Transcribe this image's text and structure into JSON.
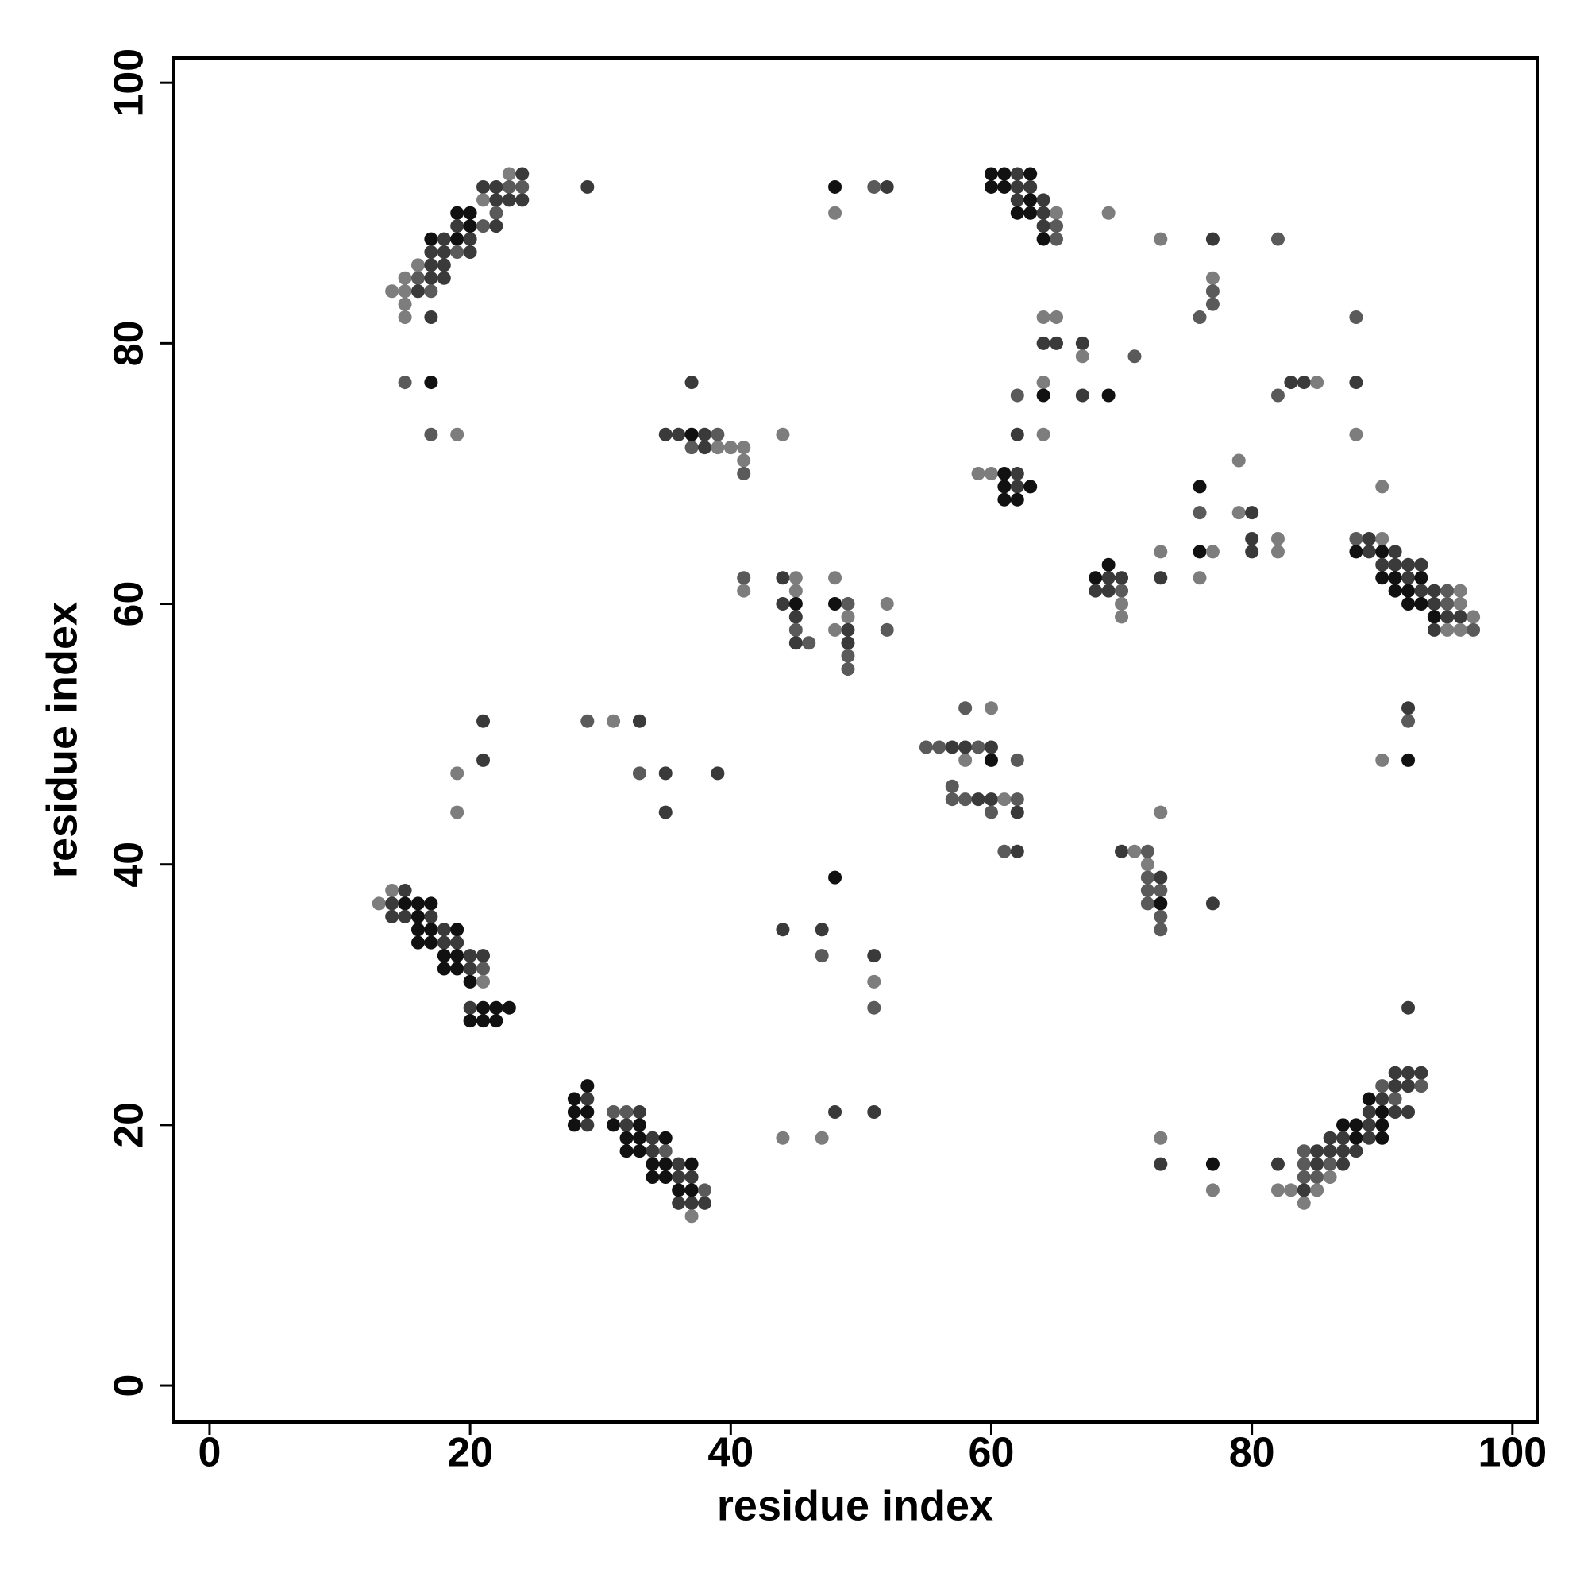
{
  "chart_data": {
    "type": "scatter",
    "xlabel": "residue index",
    "ylabel": "residue index",
    "xlim": [
      -2.8,
      101.9
    ],
    "ylim": [
      -2.8,
      101.9
    ],
    "xticks": [
      0,
      20,
      40,
      60,
      80,
      100
    ],
    "yticks": [
      0,
      20,
      40,
      60,
      80,
      100
    ],
    "grid": false,
    "x": [
      23,
      24,
      60,
      61,
      62,
      63,
      21,
      22,
      23,
      24,
      29,
      48,
      51,
      52,
      60,
      61,
      62,
      63,
      21,
      22,
      23,
      24,
      62,
      63,
      64,
      19,
      20,
      22,
      48,
      62,
      63,
      64,
      65,
      69,
      19,
      20,
      21,
      22,
      64,
      65,
      17,
      18,
      19,
      20,
      64,
      65,
      73,
      77,
      82,
      17,
      18,
      19,
      20,
      16,
      17,
      18,
      15,
      16,
      17,
      18,
      77,
      14,
      15,
      16,
      17,
      77,
      15,
      77,
      15,
      17,
      64,
      65,
      76,
      88,
      64,
      65,
      67,
      67,
      71,
      15,
      17,
      37,
      64,
      83,
      84,
      85,
      88,
      62,
      64,
      67,
      69,
      82,
      17,
      19,
      35,
      36,
      37,
      38,
      39,
      44,
      62,
      64,
      88,
      37,
      38,
      39,
      40,
      41,
      41,
      79,
      41,
      59,
      60,
      61,
      62,
      61,
      62,
      63,
      76,
      90,
      61,
      62,
      76,
      79,
      80,
      80,
      82,
      88,
      89,
      90,
      73,
      76,
      77,
      80,
      82,
      88,
      89,
      90,
      91,
      69,
      90,
      91,
      92,
      93,
      41,
      44,
      45,
      48,
      68,
      69,
      70,
      73,
      76,
      90,
      91,
      92,
      93,
      41,
      45,
      68,
      69,
      70,
      91,
      92,
      93,
      94,
      95,
      96,
      44,
      45,
      48,
      49,
      52,
      70,
      92,
      93,
      94,
      95,
      96,
      45,
      49,
      70,
      94,
      95,
      96,
      97,
      45,
      48,
      49,
      52,
      94,
      95,
      96,
      97,
      45,
      46,
      49,
      49,
      49,
      58,
      60,
      92,
      21,
      29,
      31,
      33,
      92,
      55,
      56,
      57,
      58,
      59,
      60,
      21,
      58,
      60,
      62,
      90,
      92,
      19,
      33,
      35,
      39,
      57,
      57,
      58,
      59,
      60,
      61,
      62,
      19,
      35,
      60,
      62,
      73,
      61,
      62,
      70,
      71,
      72,
      72,
      48,
      72,
      73,
      14,
      15,
      72,
      73,
      13,
      14,
      15,
      16,
      17,
      72,
      73,
      77,
      14,
      15,
      16,
      17,
      73,
      16,
      17,
      18,
      19,
      44,
      47,
      73,
      16,
      17,
      18,
      19,
      18,
      19,
      20,
      21,
      47,
      51,
      18,
      19,
      20,
      21,
      20,
      21,
      51,
      20,
      21,
      22,
      23,
      51,
      92,
      20,
      21,
      22,
      91,
      92,
      93,
      29,
      90,
      91,
      92,
      93,
      28,
      29,
      89,
      90,
      91,
      28,
      29,
      31,
      32,
      33,
      48,
      51,
      89,
      90,
      91,
      92,
      28,
      29,
      31,
      32,
      33,
      87,
      88,
      89,
      90,
      32,
      33,
      34,
      35,
      44,
      47,
      73,
      86,
      87,
      88,
      89,
      90,
      32,
      33,
      34,
      35,
      84,
      85,
      86,
      87,
      88,
      34,
      35,
      36,
      37,
      73,
      77,
      82,
      84,
      85,
      86,
      87,
      34,
      35,
      36,
      37,
      84,
      85,
      86,
      36,
      37,
      38,
      77,
      82,
      83,
      84,
      85,
      36,
      37,
      38,
      84,
      37
    ],
    "y": [
      93,
      93,
      93,
      93,
      93,
      93,
      92,
      92,
      92,
      92,
      92,
      92,
      92,
      92,
      92,
      92,
      92,
      92,
      91,
      91,
      91,
      91,
      91,
      91,
      91,
      90,
      90,
      90,
      90,
      90,
      90,
      90,
      90,
      90,
      89,
      89,
      89,
      89,
      89,
      89,
      88,
      88,
      88,
      88,
      88,
      88,
      88,
      88,
      88,
      87,
      87,
      87,
      87,
      86,
      86,
      86,
      85,
      85,
      85,
      85,
      85,
      84,
      84,
      84,
      84,
      84,
      83,
      83,
      82,
      82,
      82,
      82,
      82,
      82,
      80,
      80,
      80,
      79,
      79,
      77,
      77,
      77,
      77,
      77,
      77,
      77,
      77,
      76,
      76,
      76,
      76,
      76,
      73,
      73,
      73,
      73,
      73,
      73,
      73,
      73,
      73,
      73,
      73,
      72,
      72,
      72,
      72,
      72,
      71,
      71,
      70,
      70,
      70,
      70,
      70,
      69,
      69,
      69,
      69,
      69,
      68,
      68,
      67,
      67,
      67,
      65,
      65,
      65,
      65,
      65,
      64,
      64,
      64,
      64,
      64,
      64,
      64,
      64,
      64,
      63,
      63,
      63,
      63,
      63,
      62,
      62,
      62,
      62,
      62,
      62,
      62,
      62,
      62,
      62,
      62,
      62,
      62,
      61,
      61,
      61,
      61,
      61,
      61,
      61,
      61,
      61,
      61,
      61,
      60,
      60,
      60,
      60,
      60,
      60,
      60,
      60,
      60,
      60,
      60,
      59,
      59,
      59,
      59,
      59,
      59,
      59,
      58,
      58,
      58,
      58,
      58,
      58,
      58,
      58,
      57,
      57,
      57,
      56,
      55,
      52,
      52,
      52,
      51,
      51,
      51,
      51,
      51,
      49,
      49,
      49,
      49,
      49,
      49,
      48,
      48,
      48,
      48,
      48,
      48,
      47,
      47,
      47,
      47,
      46,
      45,
      45,
      45,
      45,
      45,
      45,
      44,
      44,
      44,
      44,
      44,
      41,
      41,
      41,
      41,
      41,
      40,
      39,
      39,
      39,
      38,
      38,
      38,
      38,
      37,
      37,
      37,
      37,
      37,
      37,
      37,
      37,
      36,
      36,
      36,
      36,
      36,
      35,
      35,
      35,
      35,
      35,
      35,
      35,
      34,
      34,
      34,
      34,
      33,
      33,
      33,
      33,
      33,
      33,
      32,
      32,
      32,
      32,
      31,
      31,
      31,
      29,
      29,
      29,
      29,
      29,
      29,
      28,
      28,
      28,
      24,
      24,
      24,
      23,
      23,
      23,
      23,
      23,
      22,
      22,
      22,
      22,
      22,
      21,
      21,
      21,
      21,
      21,
      21,
      21,
      21,
      21,
      21,
      21,
      20,
      20,
      20,
      20,
      20,
      20,
      20,
      20,
      20,
      19,
      19,
      19,
      19,
      19,
      19,
      19,
      19,
      19,
      19,
      19,
      19,
      18,
      18,
      18,
      18,
      18,
      18,
      18,
      18,
      18,
      17,
      17,
      17,
      17,
      17,
      17,
      17,
      17,
      17,
      17,
      17,
      16,
      16,
      16,
      16,
      16,
      16,
      16,
      15,
      15,
      15,
      15,
      15,
      15,
      15,
      15,
      14,
      14,
      14,
      14,
      13
    ],
    "colors": [
      "#7d7d7d",
      "#3a3a3a",
      "#111",
      "#111",
      "#3a3a3a",
      "#111",
      "#3a3a3a",
      "#3a3a3a",
      "#5a5a5a",
      "#5a5a5a",
      "#3a3a3a",
      "#111",
      "#5a5a5a",
      "#3a3a3a",
      "#111",
      "#111",
      "#3a3a3a",
      "#3a3a3a",
      "#7d7d7d",
      "#3a3a3a",
      "#3a3a3a",
      "#3a3a3a",
      "#3a3a3a",
      "#111",
      "#3a3a3a",
      "#111",
      "#111",
      "#5a5a5a",
      "#7d7d7d",
      "#111",
      "#111",
      "#3a3a3a",
      "#7d7d7d",
      "#7d7d7d",
      "#3a3a3a",
      "#111",
      "#5a5a5a",
      "#3a3a3a",
      "#3a3a3a",
      "#5a5a5a",
      "#111",
      "#3a3a3a",
      "#111",
      "#3a3a3a",
      "#111",
      "#5a5a5a",
      "#7d7d7d",
      "#3a3a3a",
      "#5a5a5a",
      "#3a3a3a",
      "#3a3a3a",
      "#5a5a5a",
      "#3a3a3a",
      "#7d7d7d",
      "#3a3a3a",
      "#3a3a3a",
      "#7d7d7d",
      "#5a5a5a",
      "#3a3a3a",
      "#3a3a3a",
      "#7d7d7d",
      "#7d7d7d",
      "#7d7d7d",
      "#3a3a3a",
      "#5a5a5a",
      "#5a5a5a",
      "#7d7d7d",
      "#5a5a5a",
      "#7d7d7d",
      "#3a3a3a",
      "#7d7d7d",
      "#7d7d7d",
      "#5a5a5a",
      "#5a5a5a",
      "#3a3a3a",
      "#3a3a3a",
      "#3a3a3a",
      "#7d7d7d",
      "#5a5a5a",
      "#5a5a5a",
      "#111",
      "#3a3a3a",
      "#7d7d7d",
      "#3a3a3a",
      "#3a3a3a",
      "#7d7d7d",
      "#3a3a3a",
      "#5a5a5a",
      "#111",
      "#3a3a3a",
      "#111",
      "#5a5a5a",
      "#5a5a5a",
      "#7d7d7d",
      "#3a3a3a",
      "#3a3a3a",
      "#111",
      "#3a3a3a",
      "#5a5a5a",
      "#7d7d7d",
      "#3a3a3a",
      "#7d7d7d",
      "#7d7d7d",
      "#5a5a5a",
      "#3a3a3a",
      "#7d7d7d",
      "#7d7d7d",
      "#7d7d7d",
      "#7d7d7d",
      "#7d7d7d",
      "#5a5a5a",
      "#7d7d7d",
      "#7d7d7d",
      "#111",
      "#3a3a3a",
      "#111",
      "#3a3a3a",
      "#111",
      "#111",
      "#7d7d7d",
      "#111",
      "#111",
      "#5a5a5a",
      "#7d7d7d",
      "#3a3a3a",
      "#3a3a3a",
      "#7d7d7d",
      "#5a5a5a",
      "#3a3a3a",
      "#7d7d7d",
      "#7d7d7d",
      "#111",
      "#7d7d7d",
      "#3a3a3a",
      "#7d7d7d",
      "#111",
      "#3a3a3a",
      "#111",
      "#3a3a3a",
      "#111",
      "#3a3a3a",
      "#3a3a3a",
      "#3a3a3a",
      "#3a3a3a",
      "#5a5a5a",
      "#3a3a3a",
      "#7d7d7d",
      "#7d7d7d",
      "#111",
      "#3a3a3a",
      "#3a3a3a",
      "#3a3a3a",
      "#7d7d7d",
      "#111",
      "#111",
      "#3a3a3a",
      "#111",
      "#7d7d7d",
      "#7d7d7d",
      "#3a3a3a",
      "#3a3a3a",
      "#5a5a5a",
      "#111",
      "#111",
      "#3a3a3a",
      "#3a3a3a",
      "#5a5a5a",
      "#7d7d7d",
      "#3a3a3a",
      "#111",
      "#111",
      "#5a5a5a",
      "#7d7d7d",
      "#7d7d7d",
      "#111",
      "#111",
      "#3a3a3a",
      "#5a5a5a",
      "#7d7d7d",
      "#3a3a3a",
      "#7d7d7d",
      "#7d7d7d",
      "#111",
      "#3a3a3a",
      "#3a3a3a",
      "#7d7d7d",
      "#5a5a5a",
      "#7d7d7d",
      "#3a3a3a",
      "#5a5a5a",
      "#3a3a3a",
      "#7d7d7d",
      "#7d7d7d",
      "#5a5a5a",
      "#3a3a3a",
      "#5a5a5a",
      "#3a3a3a",
      "#5a5a5a",
      "#5a5a5a",
      "#5a5a5a",
      "#7d7d7d",
      "#3a3a3a",
      "#3a3a3a",
      "#5a5a5a",
      "#7d7d7d",
      "#3a3a3a",
      "#5a5a5a",
      "#5a5a5a",
      "#5a5a5a",
      "#3a3a3a",
      "#3a3a3a",
      "#5a5a5a",
      "#3a3a3a",
      "#3a3a3a",
      "#7d7d7d",
      "#111",
      "#5a5a5a",
      "#7d7d7d",
      "#111",
      "#7d7d7d",
      "#5a5a5a",
      "#3a3a3a",
      "#3a3a3a",
      "#5a5a5a",
      "#5a5a5a",
      "#5a5a5a",
      "#3a3a3a",
      "#3a3a3a",
      "#7d7d7d",
      "#5a5a5a",
      "#7d7d7d",
      "#3a3a3a",
      "#5a5a5a",
      "#3a3a3a",
      "#7d7d7d",
      "#5a5a5a",
      "#3a3a3a",
      "#3a3a3a",
      "#7d7d7d",
      "#5a5a5a",
      "#7d7d7d",
      "#111",
      "#5a5a5a",
      "#3a3a3a",
      "#7d7d7d",
      "#3a3a3a",
      "#5a5a5a",
      "#5a5a5a",
      "#7d7d7d",
      "#3a3a3a",
      "#111",
      "#111",
      "#111",
      "#5a5a5a",
      "#111",
      "#3a3a3a",
      "#3a3a3a",
      "#3a3a3a",
      "#111",
      "#3a3a3a",
      "#5a5a5a",
      "#111",
      "#111",
      "#3a3a3a",
      "#111",
      "#3a3a3a",
      "#3a3a3a",
      "#5a5a5a",
      "#111",
      "#111",
      "#3a3a3a",
      "#3a3a3a",
      "#111",
      "#111",
      "#3a3a3a",
      "#3a3a3a",
      "#5a5a5a",
      "#3a3a3a",
      "#111",
      "#111",
      "#3a3a3a",
      "#5a5a5a",
      "#111",
      "#7d7d7d",
      "#7d7d7d",
      "#3a3a3a",
      "#111",
      "#111",
      "#111",
      "#5a5a5a",
      "#3a3a3a",
      "#111",
      "#111",
      "#111",
      "#3a3a3a",
      "#3a3a3a",
      "#3a3a3a",
      "#111",
      "#5a5a5a",
      "#3a3a3a",
      "#3a3a3a",
      "#5a5a5a",
      "#111",
      "#3a3a3a",
      "#111",
      "#3a3a3a",
      "#5a5a5a",
      "#111",
      "#111",
      "#5a5a5a",
      "#5a5a5a",
      "#3a3a3a",
      "#3a3a3a",
      "#3a3a3a",
      "#3a3a3a",
      "#111",
      "#3a3a3a",
      "#3a3a3a",
      "#111",
      "#3a3a3a",
      "#111",
      "#3a3a3a",
      "#111",
      "#111",
      "#111",
      "#3a3a3a",
      "#111",
      "#111",
      "#111",
      "#3a3a3a",
      "#111",
      "#7d7d7d",
      "#7d7d7d",
      "#7d7d7d",
      "#3a3a3a",
      "#3a3a3a",
      "#111",
      "#3a3a3a",
      "#111",
      "#111",
      "#111",
      "#3a3a3a",
      "#5a5a5a",
      "#5a5a5a",
      "#3a3a3a",
      "#3a3a3a",
      "#3a3a3a",
      "#3a3a3a",
      "#111",
      "#111",
      "#3a3a3a",
      "#111",
      "#3a3a3a",
      "#111",
      "#3a3a3a",
      "#5a5a5a",
      "#3a3a3a",
      "#5a5a5a",
      "#3a3a3a",
      "#111",
      "#111",
      "#3a3a3a",
      "#3a3a3a",
      "#5a5a5a",
      "#5a5a5a",
      "#7d7d7d",
      "#111",
      "#111",
      "#5a5a5a",
      "#7d7d7d",
      "#7d7d7d",
      "#7d7d7d",
      "#3a3a3a",
      "#7d7d7d",
      "#3a3a3a",
      "#3a3a3a",
      "#3a3a3a",
      "#7d7d7d",
      "#7d7d7d"
    ]
  }
}
